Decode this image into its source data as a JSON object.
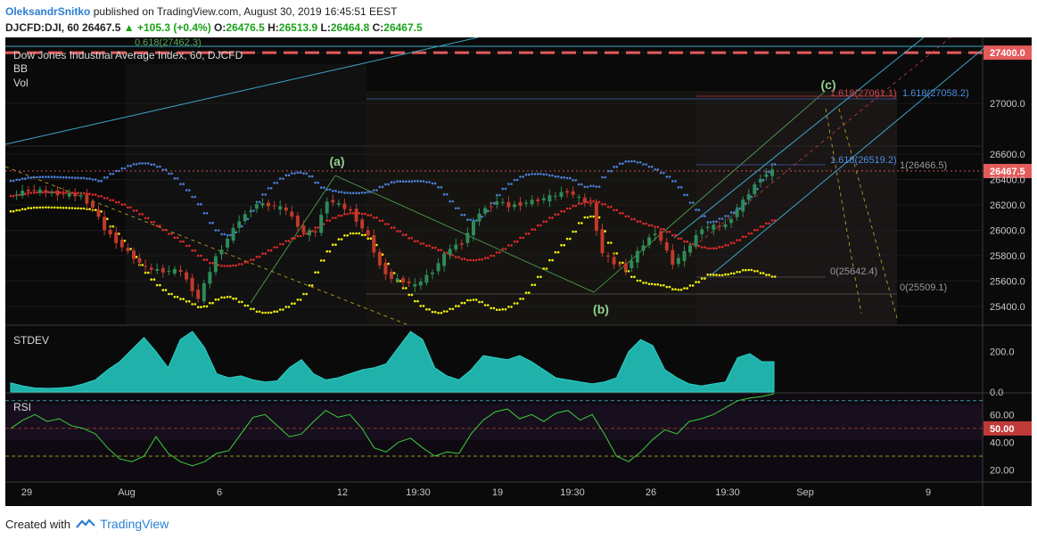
{
  "header": {
    "author": "OleksandrSnitko",
    "published": "published on TradingView.com, August 30, 2019 16:45:51 EEST",
    "symbol": "DJCFD:DJI, 60",
    "last": "26467.5",
    "change": "▲ +105.3 (+0.4%)",
    "o_label": "O:",
    "o_val": "26476.5",
    "h_label": "H:",
    "h_val": "26513.9",
    "l_label": "L:",
    "l_val": "26464.8",
    "c_label": "C:",
    "c_val": "26467.5"
  },
  "legend": {
    "title": "Dow Jones Industrial Average Index, 60, DJCFD",
    "bb": "BB",
    "vol": "Vol"
  },
  "footer": {
    "created_with": "Created with",
    "brand": "TradingView"
  },
  "colors": {
    "background": "#0a0a0a",
    "candle_up": "#2e8b57",
    "candle_down": "#c0392b",
    "bb_upper": "#4a7fd8",
    "bb_basis": "#e02a2a",
    "bb_lower": "#f2f20a",
    "stdev_fill": "#20b2aa",
    "rsi_line": "#3bd13b",
    "channel": "#3aa8c8",
    "price_badge": "#e45b5b",
    "resistance": "#e45b5b"
  },
  "chart_data": [
    {
      "type": "candlestick",
      "title": "Dow Jones Industrial Average Index, 60, DJCFD",
      "interval": "60",
      "ylim": [
        25260,
        27520
      ],
      "y_ticks": [
        "27400.0",
        "27000.0",
        "26600.0",
        "26467.5",
        "26400.0",
        "26200.0",
        "26000.0",
        "25800.0",
        "25600.0",
        "25400.0"
      ],
      "x_ticks": [
        "29",
        "Aug",
        "6",
        "12",
        "19:30",
        "19",
        "19:30",
        "26",
        "19:30",
        "Sep",
        "9"
      ],
      "last_price": 26467.5,
      "resistance": 27400.0,
      "price_path": [
        [
          0,
          26270
        ],
        [
          3,
          26320
        ],
        [
          8,
          26290
        ],
        [
          12,
          26270
        ],
        [
          14,
          26180
        ],
        [
          16,
          26010
        ],
        [
          19,
          25870
        ],
        [
          23,
          25700
        ],
        [
          26,
          25680
        ],
        [
          29,
          25680
        ],
        [
          32,
          25460
        ],
        [
          35,
          25790
        ],
        [
          39,
          26080
        ],
        [
          42,
          26210
        ],
        [
          44,
          26200
        ],
        [
          47,
          26160
        ],
        [
          50,
          25980
        ],
        [
          52,
          25990
        ],
        [
          54,
          26240
        ],
        [
          56,
          26200
        ],
        [
          58,
          26150
        ],
        [
          61,
          25950
        ],
        [
          63,
          25720
        ],
        [
          65,
          25620
        ],
        [
          67,
          25600
        ],
        [
          69,
          25560
        ],
        [
          72,
          25680
        ],
        [
          75,
          25860
        ],
        [
          77,
          25900
        ],
        [
          80,
          26140
        ],
        [
          83,
          26230
        ],
        [
          85,
          26190
        ],
        [
          88,
          26220
        ],
        [
          92,
          26260
        ],
        [
          95,
          26310
        ],
        [
          97,
          26250
        ],
        [
          99,
          26200
        ],
        [
          101,
          25820
        ],
        [
          103,
          25740
        ],
        [
          105,
          25700
        ],
        [
          108,
          25890
        ],
        [
          110,
          25990
        ],
        [
          111,
          25920
        ],
        [
          113,
          25740
        ],
        [
          115,
          25820
        ],
        [
          118,
          26020
        ],
        [
          122,
          26040
        ],
        [
          125,
          26230
        ],
        [
          128,
          26420
        ],
        [
          130,
          26467.5
        ]
      ],
      "wave_labels": [
        {
          "label": "(a)",
          "price": 26470
        },
        {
          "label": "(b)",
          "price": 25510
        },
        {
          "label": "(c)",
          "price": 27070
        }
      ],
      "annotations": [
        {
          "text": "0.618(27462.3)",
          "price": 27462.3
        },
        {
          "text": "1.618(27061.1)",
          "price": 27061.1
        },
        {
          "text": "1.618(27058.2)",
          "price": 27058.2
        },
        {
          "text": "1.618(26519.2)",
          "price": 26519.2
        },
        {
          "text": "1(26466.5)",
          "price": 26466.5
        },
        {
          "text": "0(25642.4)",
          "price": 25642.4
        },
        {
          "text": "0(25509.1)",
          "price": 25509.1
        }
      ]
    },
    {
      "type": "area",
      "title": "STDEV",
      "ylim": [
        0,
        300
      ],
      "y_ticks": [
        "200.0",
        "0.0"
      ],
      "values": [
        45,
        30,
        20,
        18,
        20,
        25,
        40,
        60,
        110,
        150,
        210,
        270,
        200,
        120,
        260,
        300,
        220,
        90,
        70,
        80,
        60,
        50,
        55,
        120,
        160,
        90,
        60,
        70,
        90,
        110,
        120,
        140,
        220,
        300,
        260,
        120,
        80,
        60,
        110,
        180,
        170,
        160,
        180,
        150,
        110,
        70,
        60,
        50,
        40,
        50,
        70,
        200,
        260,
        230,
        110,
        70,
        40,
        30,
        40,
        50,
        170,
        190,
        150,
        150
      ]
    },
    {
      "type": "line",
      "title": "RSI",
      "ylim": [
        12,
        75
      ],
      "y_ticks": [
        "60.00",
        "50.00",
        "40.00",
        "20.00"
      ],
      "levels": [
        70,
        50,
        30
      ],
      "values": [
        50,
        56,
        60,
        55,
        57,
        52,
        50,
        46,
        36,
        28,
        26,
        30,
        44,
        32,
        26,
        23,
        26,
        32,
        34,
        46,
        58,
        60,
        52,
        44,
        46,
        55,
        63,
        58,
        60,
        50,
        36,
        33,
        40,
        43,
        36,
        30,
        33,
        32,
        46,
        56,
        62,
        64,
        57,
        60,
        55,
        61,
        63,
        56,
        60,
        46,
        30,
        26,
        33,
        42,
        49,
        46,
        55,
        57,
        60,
        65,
        70,
        72,
        73,
        75
      ]
    }
  ]
}
